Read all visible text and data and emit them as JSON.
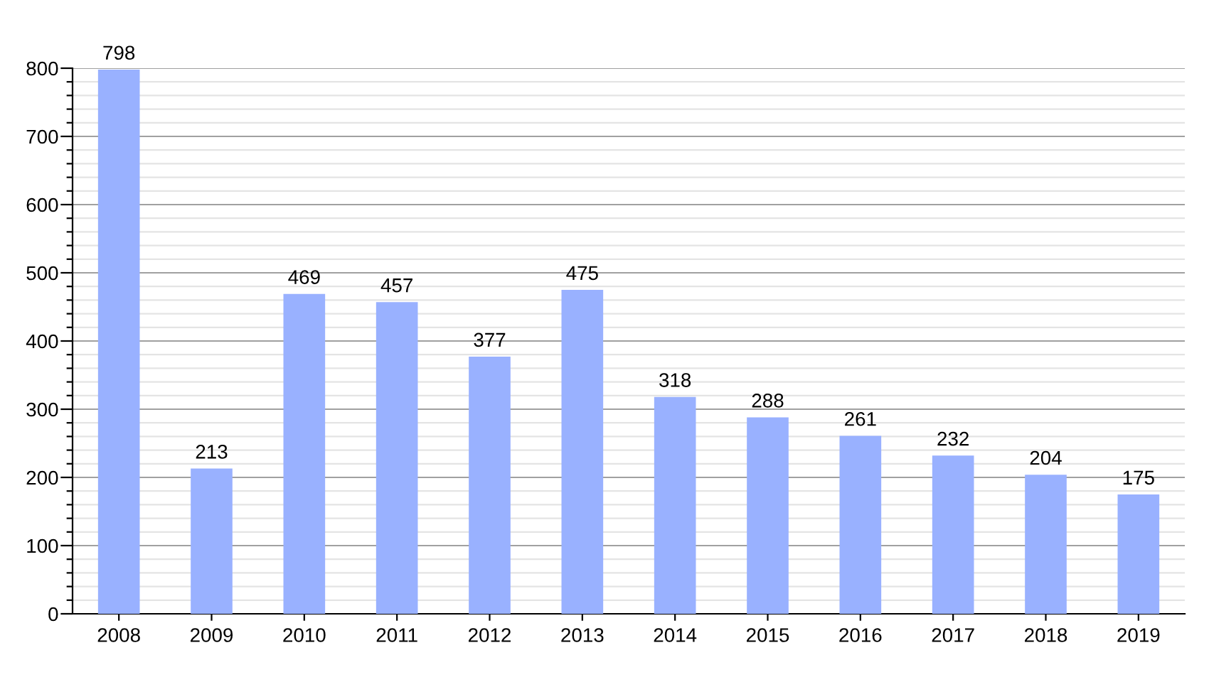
{
  "chart_data": {
    "type": "bar",
    "categories": [
      "2008",
      "2009",
      "2010",
      "2011",
      "2012",
      "2013",
      "2014",
      "2015",
      "2016",
      "2017",
      "2018",
      "2019"
    ],
    "values": [
      798,
      213,
      469,
      457,
      377,
      475,
      318,
      288,
      261,
      232,
      204,
      175
    ],
    "color": "#99b1ff",
    "data_labels": true,
    "grid": "y",
    "ylim": [
      0,
      800
    ],
    "yticks": [
      0,
      {
        "value": 20,
        "label": null
      },
      {
        "value": 40,
        "label": null
      },
      {
        "value": 60,
        "label": null
      },
      {
        "value": 80,
        "label": null
      },
      100,
      {
        "value": 120,
        "label": null
      },
      {
        "value": 140,
        "label": null
      },
      {
        "value": 160,
        "label": null
      },
      {
        "value": 180,
        "label": null
      },
      200,
      {
        "value": 220,
        "label": null
      },
      {
        "value": 240,
        "label": null
      },
      {
        "value": 260,
        "label": null
      },
      {
        "value": 280,
        "label": null
      },
      300,
      {
        "value": 320,
        "label": null
      },
      {
        "value": 340,
        "label": null
      },
      {
        "value": 360,
        "label": null
      },
      {
        "value": 380,
        "label": null
      },
      400,
      {
        "value": 420,
        "label": null
      },
      {
        "value": 440,
        "label": null
      },
      {
        "value": 460,
        "label": null
      },
      {
        "value": 480,
        "label": null
      },
      500,
      {
        "value": 520,
        "label": null
      },
      {
        "value": 540,
        "label": null
      },
      {
        "value": 560,
        "label": null
      },
      {
        "value": 580,
        "label": null
      },
      600,
      {
        "value": 620,
        "label": null
      },
      {
        "value": 640,
        "label": null
      },
      {
        "value": 660,
        "label": null
      },
      {
        "value": 680,
        "label": null
      },
      700,
      {
        "value": 720,
        "label": null
      },
      {
        "value": 740,
        "label": null
      },
      {
        "value": 760,
        "label": null
      },
      {
        "value": 780,
        "label": null
      },
      800
    ]
  }
}
